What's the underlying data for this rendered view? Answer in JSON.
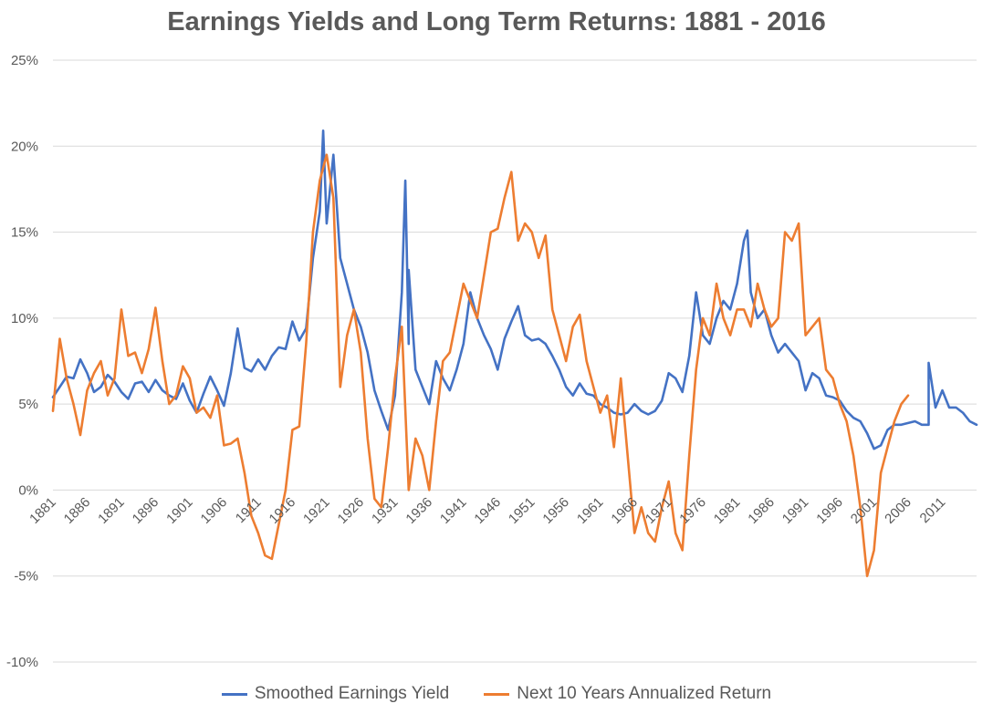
{
  "chart_data": {
    "type": "line",
    "title": "Earnings Yields and Long Term Returns: 1881 - 2016",
    "xlabel": "",
    "ylabel": "",
    "ylim": [
      -10,
      25
    ],
    "yticks": [
      -10,
      -5,
      0,
      5,
      10,
      15,
      20,
      25
    ],
    "ytick_labels": [
      "-10%",
      "-5%",
      "0%",
      "5%",
      "10%",
      "15%",
      "20%",
      "25%"
    ],
    "xlim": [
      1881,
      2016
    ],
    "xticks": [
      1881,
      1886,
      1891,
      1896,
      1901,
      1906,
      1911,
      1916,
      1921,
      1926,
      1931,
      1936,
      1941,
      1946,
      1951,
      1956,
      1961,
      1966,
      1971,
      1976,
      1981,
      1986,
      1991,
      1996,
      2001,
      2006,
      2011
    ],
    "grid": true,
    "legend_position": "bottom",
    "series": [
      {
        "name": "Smoothed Earnings Yield",
        "color": "#4472C4",
        "x": [
          1881,
          1882,
          1883,
          1884,
          1885,
          1886,
          1887,
          1888,
          1889,
          1890,
          1891,
          1892,
          1893,
          1894,
          1895,
          1896,
          1897,
          1898,
          1899,
          1900,
          1901,
          1902,
          1903,
          1904,
          1905,
          1906,
          1907,
          1908,
          1909,
          1910,
          1911,
          1912,
          1913,
          1914,
          1915,
          1916,
          1917,
          1918,
          1919,
          1920,
          1921,
          1922,
          1923,
          1924,
          1925,
          1926,
          1927,
          1928,
          1929,
          1930,
          1931,
          1932,
          1933,
          1934,
          1935,
          1936,
          1937,
          1938,
          1939,
          1940,
          1941,
          1942,
          1943,
          1944,
          1945,
          1946,
          1947,
          1948,
          1949,
          1950,
          1951,
          1952,
          1953,
          1954,
          1955,
          1956,
          1957,
          1958,
          1959,
          1960,
          1961,
          1962,
          1963,
          1964,
          1965,
          1966,
          1967,
          1968,
          1969,
          1970,
          1971,
          1972,
          1973,
          1974,
          1975,
          1976,
          1977,
          1978,
          1979,
          1980,
          1981,
          1982,
          1983,
          1984,
          1985,
          1986,
          1987,
          1988,
          1989,
          1990,
          1991,
          1992,
          1993,
          1994,
          1995,
          1996,
          1997,
          1998,
          1999,
          2000,
          2001,
          2002,
          2003,
          2004,
          2005,
          2006,
          2007,
          2008,
          2009,
          2010,
          2011,
          2012,
          2013,
          2014,
          2015,
          2016
        ],
        "values": [
          5.4,
          6.0,
          6.6,
          6.5,
          7.6,
          6.8,
          5.7,
          6.0,
          6.7,
          6.3,
          5.7,
          5.3,
          6.2,
          6.3,
          5.7,
          6.4,
          5.8,
          5.5,
          5.3,
          6.2,
          5.2,
          4.5,
          5.6,
          6.6,
          5.8,
          4.9,
          6.8,
          9.4,
          7.1,
          6.9,
          7.6,
          7.0,
          7.8,
          8.3,
          8.2,
          9.8,
          8.7,
          9.4,
          13.5,
          16.2,
          15.5,
          19.5,
          13.5,
          12.0,
          10.5,
          9.5,
          8.0,
          5.8,
          4.6,
          3.5,
          5.5,
          11.5,
          8.5,
          7.0,
          6.0,
          5.0,
          7.5,
          6.5,
          5.8,
          7.0,
          8.5,
          11.5,
          10.0,
          9.0,
          8.2,
          7.0,
          8.8,
          9.8,
          10.7,
          9.0,
          8.7,
          8.8,
          8.5,
          7.8,
          7.0,
          6.0,
          5.5,
          6.2,
          5.6,
          5.5,
          5.0,
          4.8,
          4.5,
          4.4,
          4.5,
          5.0,
          4.6,
          4.4,
          4.6,
          5.2,
          6.8,
          6.5,
          5.7,
          7.8,
          11.5,
          9.0,
          8.5,
          10.0,
          11.0,
          10.5,
          12.0,
          14.5,
          11.5,
          10.0,
          10.5,
          9.0,
          8.0,
          8.5,
          8.0,
          7.5,
          5.8,
          6.8,
          6.5,
          5.5,
          5.4,
          5.2,
          4.6,
          4.2,
          4.0,
          3.3,
          2.4,
          2.6,
          3.5,
          3.8,
          3.8,
          3.9,
          4.0,
          3.8,
          3.8,
          4.8,
          5.8,
          4.8,
          4.8,
          4.5,
          4.0,
          3.8
        ],
        "spikes": [
          {
            "x": 1920.5,
            "value": 20.9
          },
          {
            "x": 1932.5,
            "value": 18.0
          },
          {
            "x": 1933.0,
            "value": 12.8
          },
          {
            "x": 1982.5,
            "value": 15.1
          },
          {
            "x": 2009.0,
            "value": 7.4
          }
        ]
      },
      {
        "name": "Next 10 Years Annualized Return",
        "color": "#ED7D31",
        "x": [
          1881,
          1882,
          1883,
          1884,
          1885,
          1886,
          1887,
          1888,
          1889,
          1890,
          1891,
          1892,
          1893,
          1894,
          1895,
          1896,
          1897,
          1898,
          1899,
          1900,
          1901,
          1902,
          1903,
          1904,
          1905,
          1906,
          1907,
          1908,
          1909,
          1910,
          1911,
          1912,
          1913,
          1914,
          1915,
          1916,
          1917,
          1918,
          1919,
          1920,
          1921,
          1922,
          1923,
          1924,
          1925,
          1926,
          1927,
          1928,
          1929,
          1930,
          1931,
          1932,
          1933,
          1934,
          1935,
          1936,
          1937,
          1938,
          1939,
          1940,
          1941,
          1942,
          1943,
          1944,
          1945,
          1946,
          1947,
          1948,
          1949,
          1950,
          1951,
          1952,
          1953,
          1954,
          1955,
          1956,
          1957,
          1958,
          1959,
          1960,
          1961,
          1962,
          1963,
          1964,
          1965,
          1966,
          1967,
          1968,
          1969,
          1970,
          1971,
          1972,
          1973,
          1974,
          1975,
          1976,
          1977,
          1978,
          1979,
          1980,
          1981,
          1982,
          1983,
          1984,
          1985,
          1986,
          1987,
          1988,
          1989,
          1990,
          1991,
          1992,
          1993,
          1994,
          1995,
          1996,
          1997,
          1998,
          1999,
          2000,
          2001,
          2002,
          2003,
          2004,
          2005,
          2006
        ],
        "values": [
          4.6,
          8.8,
          6.5,
          5.0,
          3.2,
          5.8,
          6.8,
          7.5,
          5.5,
          6.5,
          10.5,
          7.8,
          8.0,
          6.8,
          8.2,
          10.6,
          7.5,
          5.0,
          5.5,
          7.2,
          6.5,
          4.5,
          4.8,
          4.2,
          5.5,
          2.6,
          2.7,
          3.0,
          1.0,
          -1.5,
          -2.5,
          -3.8,
          -4.0,
          -2.0,
          0.0,
          3.5,
          3.7,
          8.5,
          15.0,
          18.0,
          19.5,
          17.0,
          6.0,
          9.0,
          10.5,
          8.0,
          3.0,
          -0.5,
          -1.0,
          2.5,
          6.5,
          9.5,
          0.0,
          3.0,
          2.0,
          0.0,
          4.0,
          7.5,
          8.0,
          10.0,
          12.0,
          11.0,
          10.0,
          12.5,
          15.0,
          15.2,
          17.0,
          18.5,
          14.5,
          15.5,
          15.0,
          13.5,
          14.8,
          10.5,
          9.0,
          7.5,
          9.5,
          10.2,
          7.5,
          6.0,
          4.5,
          5.5,
          2.5,
          6.5,
          2.0,
          -2.5,
          -1.0,
          -2.5,
          -3.0,
          -1.0,
          0.5,
          -2.5,
          -3.5,
          2.0,
          7.0,
          10.0,
          9.0,
          12.0,
          10.0,
          9.0,
          10.5,
          10.5,
          9.5,
          12.0,
          10.5,
          9.5,
          10.0,
          15.0,
          14.5,
          15.5,
          9.0,
          9.5,
          10.0,
          7.0,
          6.5,
          5.0,
          4.0,
          2.0,
          -1.0,
          -5.0,
          -3.5,
          1.0,
          2.5,
          4.0,
          5.0,
          5.5
        ]
      }
    ]
  }
}
